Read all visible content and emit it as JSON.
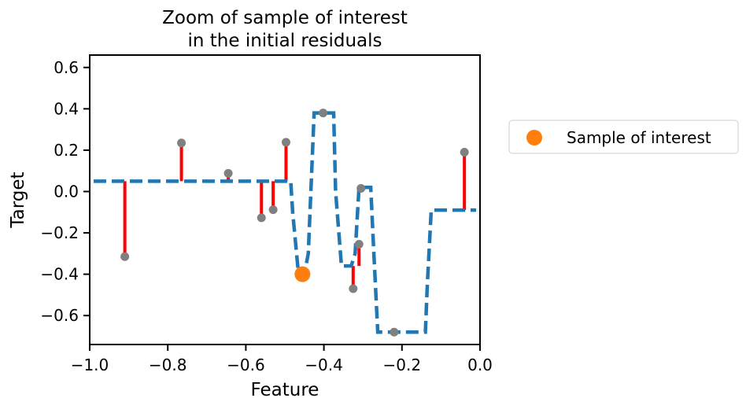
{
  "chart_data": {
    "type": "scatter",
    "title": "Zoom of sample of interest\nin the initial residuals",
    "title_lines": [
      "Zoom of sample of interest",
      "in the initial residuals"
    ],
    "xlabel": "Feature",
    "ylabel": "Target",
    "xlim": [
      -1.0,
      0.0
    ],
    "ylim": [
      -0.74,
      0.66
    ],
    "xticks": [
      -1.0,
      -0.8,
      -0.6,
      -0.4,
      -0.2,
      0.0
    ],
    "xtick_labels": [
      "−1.0",
      "−0.8",
      "−0.6",
      "−0.4",
      "−0.2",
      "0.0"
    ],
    "yticks": [
      0.6,
      0.4,
      0.2,
      0.0,
      -0.2,
      -0.4,
      -0.6
    ],
    "ytick_labels": [
      "0.6",
      "0.4",
      "0.2",
      "0.0",
      "−0.2",
      "−0.4",
      "−0.6"
    ],
    "grid": false,
    "legend_position": "outside right",
    "points": {
      "x": [
        -0.91,
        -0.765,
        -0.645,
        -0.56,
        -0.53,
        -0.497,
        -0.402,
        -0.325,
        -0.31,
        -0.305,
        -0.22,
        -0.04
      ],
      "y": [
        -0.315,
        0.235,
        0.088,
        -0.127,
        -0.088,
        0.238,
        0.38,
        -0.47,
        -0.255,
        0.015,
        -0.68,
        0.19
      ],
      "color": "#808080"
    },
    "residuals": {
      "x": [
        -0.91,
        -0.765,
        -0.645,
        -0.56,
        -0.53,
        -0.497,
        -0.402,
        -0.325,
        -0.31,
        -0.305,
        -0.22,
        -0.04
      ],
      "from": [
        0.05,
        0.05,
        0.05,
        0.05,
        0.05,
        0.05,
        0.38,
        -0.36,
        -0.36,
        0.02,
        -0.68,
        -0.09
      ],
      "to": [
        -0.315,
        0.235,
        0.088,
        -0.127,
        -0.088,
        0.238,
        0.38,
        -0.47,
        -0.255,
        0.015,
        -0.68,
        0.19
      ],
      "color": "#ff0000"
    },
    "prediction": {
      "x": [
        -0.99,
        -0.485,
        -0.48,
        -0.465,
        -0.45,
        -0.44,
        -0.425,
        -0.375,
        -0.37,
        -0.355,
        -0.33,
        -0.32,
        -0.31,
        -0.298,
        -0.28,
        -0.272,
        -0.262,
        -0.255,
        -0.14,
        -0.135,
        -0.125,
        -0.01
      ],
      "y": [
        0.05,
        0.05,
        -0.1,
        -0.4,
        -0.4,
        -0.3,
        0.38,
        0.38,
        0.0,
        -0.36,
        -0.36,
        -0.3,
        0.02,
        0.02,
        0.02,
        -0.3,
        -0.68,
        -0.68,
        -0.68,
        -0.45,
        -0.09,
        -0.09
      ],
      "color": "#1f77b4",
      "style": "dashed"
    },
    "highlight": {
      "name": "Sample of interest",
      "x": -0.455,
      "y": -0.4,
      "color": "#ff7f0e"
    }
  },
  "legend": {
    "items": [
      {
        "label": "Sample of interest",
        "color": "#ff7f0e"
      }
    ]
  }
}
